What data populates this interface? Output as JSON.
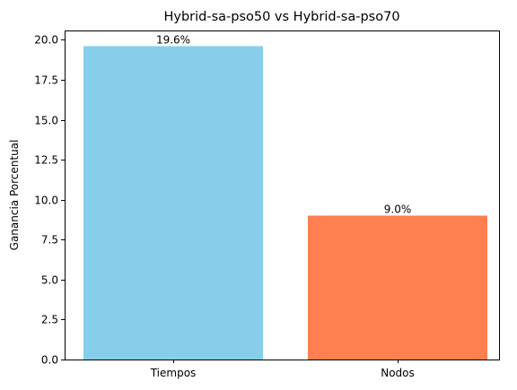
{
  "chart_data": {
    "type": "bar",
    "title": "Hybrid-sa-pso50 vs Hybrid-sa-pso70",
    "xlabel": "",
    "ylabel": "Ganancia Porcentual",
    "categories": [
      "Tiempos",
      "Nodos"
    ],
    "values": [
      19.6,
      9.0
    ],
    "data_labels": [
      "19.6%",
      "9.0%"
    ],
    "colors": [
      "#87ceeb",
      "#ff7f50"
    ],
    "ylim": [
      0,
      20.58
    ],
    "yticks": [
      0.0,
      2.5,
      5.0,
      7.5,
      10.0,
      12.5,
      15.0,
      17.5,
      20.0
    ],
    "ytick_labels": [
      "0.0",
      "2.5",
      "5.0",
      "7.5",
      "10.0",
      "12.5",
      "15.0",
      "17.5",
      "20.0"
    ],
    "grid": false,
    "legend": "none"
  }
}
